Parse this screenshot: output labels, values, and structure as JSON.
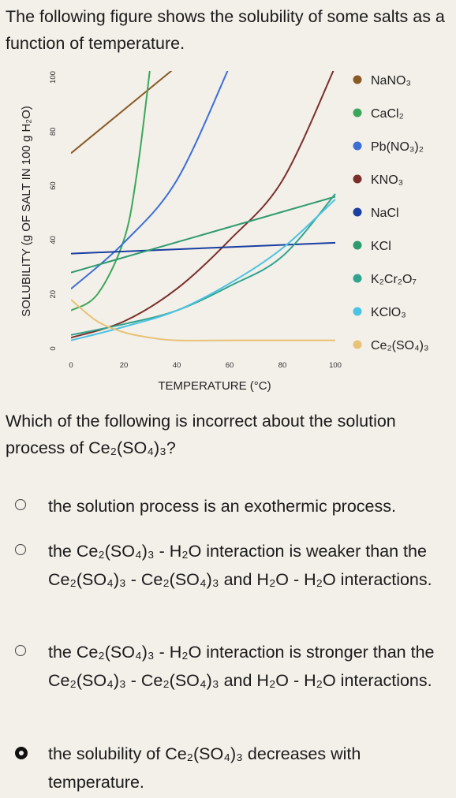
{
  "question": {
    "intro": "The following figure shows the solubility of some salts as a function of temperature.",
    "prompt": "Which of the following is incorrect about the solution process of Ce₂(SO₄)₃?"
  },
  "chart_data": {
    "type": "line",
    "title": "",
    "xlabel": "TEMPERATURE (°C)",
    "ylabel": "SOLUBILITY (g OF SALT IN 100 g H₂O)",
    "xlim": [
      0,
      100
    ],
    "ylim": [
      0,
      100
    ],
    "xticks": [
      0,
      20,
      40,
      60,
      80,
      100
    ],
    "yticks": [
      0,
      20,
      40,
      60,
      80,
      100
    ],
    "legend_position": "right",
    "series": [
      {
        "name": "NaNO₃",
        "color": "#8a5a24",
        "x": [
          0,
          40
        ],
        "y": [
          72,
          104
        ]
      },
      {
        "name": "CaCl₂",
        "color": "#3aa85a",
        "x": [
          0,
          10,
          20,
          25,
          30
        ],
        "y": [
          14,
          20,
          40,
          65,
          104
        ]
      },
      {
        "name": "Pb(NO₃)₂",
        "color": "#3b6fd6",
        "x": [
          0,
          20,
          40,
          60
        ],
        "y": [
          22,
          39,
          62,
          104
        ]
      },
      {
        "name": "KNO₃",
        "color": "#7b2f2a",
        "x": [
          0,
          20,
          40,
          60,
          80,
          100
        ],
        "y": [
          4,
          10,
          22,
          40,
          62,
          104
        ]
      },
      {
        "name": "NaCl",
        "color": "#1a3fa0",
        "x": [
          0,
          100
        ],
        "y": [
          35,
          39
        ]
      },
      {
        "name": "KCl",
        "color": "#2e9b6e",
        "x": [
          0,
          100
        ],
        "y": [
          28,
          56
        ]
      },
      {
        "name": "K₂Cr₂O₇",
        "color": "#2fa58f",
        "x": [
          0,
          20,
          40,
          60,
          80,
          100
        ],
        "y": [
          5,
          9,
          14,
          23,
          34,
          57
        ]
      },
      {
        "name": "KClO₃",
        "color": "#4bc3e3",
        "x": [
          0,
          20,
          40,
          60,
          80,
          100
        ],
        "y": [
          3,
          8,
          14,
          24,
          37,
          55
        ]
      },
      {
        "name": "Ce₂(SO₄)₃",
        "color": "#e8c276",
        "x": [
          0,
          10,
          20,
          30,
          40,
          60,
          80,
          100
        ],
        "y": [
          18,
          10,
          6,
          4,
          3,
          3,
          3,
          3
        ]
      }
    ]
  },
  "options": [
    {
      "label": "the solution process is an exothermic process.",
      "selected": false
    },
    {
      "label": "the Ce₂(SO₄)₃ - H₂O interaction is weaker than the Ce₂(SO₄)₃ - Ce₂(SO₄)₃ and H₂O - H₂O interactions.",
      "selected": false
    },
    {
      "label": "the Ce₂(SO₄)₃ - H₂O interaction is stronger than the Ce₂(SO₄)₃ - Ce₂(SO₄)₃ and H₂O - H₂O interactions.",
      "selected": false
    },
    {
      "label": "the solubility of Ce₂(SO₄)₃ decreases with temperature.",
      "selected": true
    }
  ]
}
